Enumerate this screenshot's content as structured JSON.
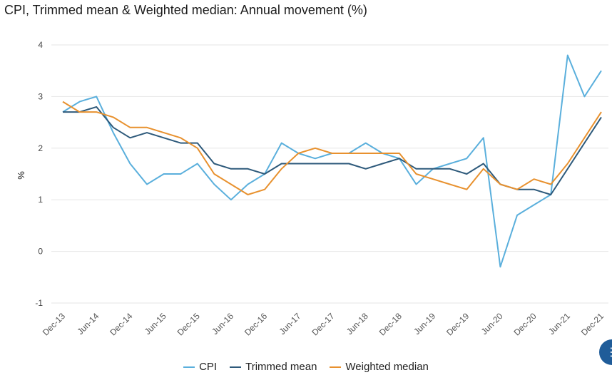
{
  "chart_data": {
    "type": "line",
    "title": "CPI, Trimmed mean & Weighted median: Annual movement (%)",
    "xlabel": "",
    "ylabel": "%",
    "ylim": [
      -1,
      4
    ],
    "yticks": [
      4,
      3,
      2,
      1,
      0,
      -1
    ],
    "grid": true,
    "legend_position": "bottom",
    "x": [
      "Dec-13",
      "Mar-14",
      "Jun-14",
      "Sep-14",
      "Dec-14",
      "Mar-15",
      "Jun-15",
      "Sep-15",
      "Dec-15",
      "Mar-16",
      "Jun-16",
      "Sep-16",
      "Dec-16",
      "Mar-17",
      "Jun-17",
      "Sep-17",
      "Dec-17",
      "Mar-18",
      "Jun-18",
      "Sep-18",
      "Dec-18",
      "Mar-19",
      "Jun-19",
      "Sep-19",
      "Dec-19",
      "Mar-20",
      "Jun-20",
      "Sep-20",
      "Dec-20",
      "Mar-21",
      "Jun-21",
      "Sep-21",
      "Dec-21"
    ],
    "xtick_labels": [
      "Dec-13",
      "Jun-14",
      "Dec-14",
      "Jun-15",
      "Dec-15",
      "Jun-16",
      "Dec-16",
      "Jun-17",
      "Dec-17",
      "Jun-18",
      "Dec-18",
      "Jun-19",
      "Dec-19",
      "Jun-20",
      "Dec-20",
      "Jun-21",
      "Dec-21"
    ],
    "series": [
      {
        "name": "CPI",
        "color": "#5aafdc",
        "values": [
          2.7,
          2.9,
          3.0,
          2.3,
          1.7,
          1.3,
          1.5,
          1.5,
          1.7,
          1.3,
          1.0,
          1.3,
          1.5,
          2.1,
          1.9,
          1.8,
          1.9,
          1.9,
          2.1,
          1.9,
          1.8,
          1.3,
          1.6,
          1.7,
          1.8,
          2.2,
          -0.3,
          0.7,
          0.9,
          1.1,
          3.8,
          3.0,
          3.5
        ]
      },
      {
        "name": "Trimmed mean",
        "color": "#2e5a7b",
        "values": [
          2.7,
          2.7,
          2.8,
          2.4,
          2.2,
          2.3,
          2.2,
          2.1,
          2.1,
          1.7,
          1.6,
          1.6,
          1.5,
          1.7,
          1.7,
          1.7,
          1.7,
          1.7,
          1.6,
          1.7,
          1.8,
          1.6,
          1.6,
          1.6,
          1.5,
          1.7,
          1.3,
          1.2,
          1.2,
          1.1,
          1.6,
          2.1,
          2.6
        ]
      },
      {
        "name": "Weighted median",
        "color": "#e8912e",
        "values": [
          2.9,
          2.7,
          2.7,
          2.6,
          2.4,
          2.4,
          2.3,
          2.2,
          2.0,
          1.5,
          1.3,
          1.1,
          1.2,
          1.6,
          1.9,
          2.0,
          1.9,
          1.9,
          1.9,
          1.9,
          1.9,
          1.5,
          1.4,
          1.3,
          1.2,
          1.6,
          1.3,
          1.2,
          1.4,
          1.3,
          1.7,
          2.2,
          2.7
        ]
      }
    ]
  },
  "ui": {
    "badge_glyph": "⋮"
  }
}
